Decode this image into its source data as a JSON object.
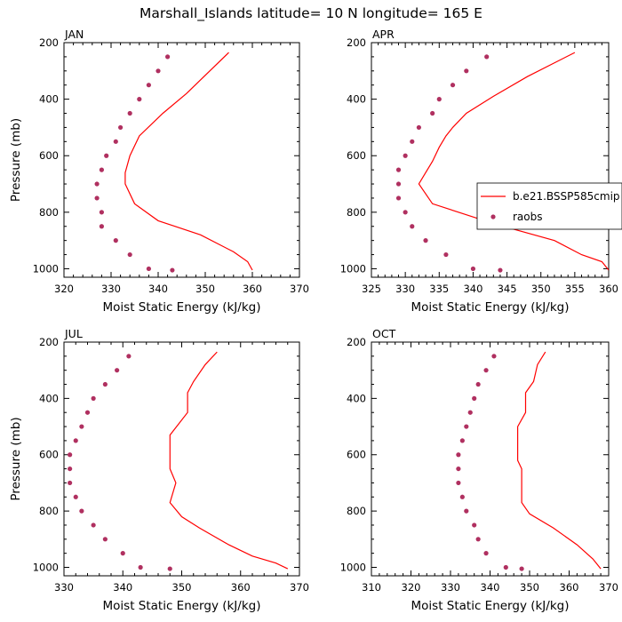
{
  "figure": {
    "title": "Marshall_Islands  latitude= 10 N longitude= 165 E"
  },
  "colors": {
    "model": "#ff0000",
    "obs": "#b03060",
    "axis": "#000000"
  },
  "chart_data": [
    {
      "type": "line",
      "panel": "JAN",
      "xlabel": "Moist Static Energy (kJ/kg)",
      "ylabel": "Pressure (mb)",
      "xlim": [
        320,
        370
      ],
      "xticks": [
        320,
        330,
        340,
        350,
        360,
        370
      ],
      "ylim": [
        200,
        1030
      ],
      "yticks": [
        200,
        400,
        600,
        800,
        1000
      ],
      "y_inverted": true,
      "series": [
        {
          "kind": "line",
          "x": [
            355,
            346,
            341,
            336,
            334,
            333,
            333,
            335,
            340,
            349,
            356,
            359,
            360
          ],
          "y": [
            235,
            380,
            450,
            530,
            600,
            660,
            700,
            770,
            830,
            880,
            940,
            975,
            1005
          ]
        },
        {
          "kind": "scatter",
          "x": [
            342,
            340,
            338,
            336,
            334,
            332,
            331,
            329,
            328,
            327,
            327,
            328,
            328,
            331,
            334,
            338,
            343
          ],
          "y": [
            250,
            300,
            350,
            400,
            450,
            500,
            550,
            600,
            650,
            700,
            750,
            800,
            850,
            900,
            950,
            1000,
            1005
          ]
        }
      ]
    },
    {
      "type": "line",
      "panel": "APR",
      "xlabel": "Moist Static Energy (kJ/kg)",
      "ylabel": "",
      "xlim": [
        325,
        360
      ],
      "xticks": [
        325,
        330,
        335,
        340,
        345,
        350,
        355,
        360
      ],
      "ylim": [
        200,
        1030
      ],
      "yticks": [
        200,
        400,
        600,
        800,
        1000
      ],
      "y_inverted": true,
      "legend": {
        "position": "center-right",
        "entries": [
          "b.e21.BSSP585cmip",
          "raobs"
        ]
      },
      "series": [
        {
          "kind": "line",
          "name": "b.e21.BSSP585cmip",
          "x": [
            355,
            348,
            343,
            339,
            337,
            336,
            335,
            334,
            333,
            332,
            334,
            343,
            352,
            356,
            359,
            360
          ],
          "y": [
            235,
            320,
            390,
            450,
            500,
            530,
            570,
            620,
            660,
            700,
            770,
            840,
            900,
            950,
            975,
            1005
          ]
        },
        {
          "kind": "scatter",
          "name": "raobs",
          "x": [
            342,
            339,
            337,
            335,
            334,
            332,
            331,
            330,
            329,
            329,
            329,
            330,
            331,
            333,
            336,
            340,
            344
          ],
          "y": [
            250,
            300,
            350,
            400,
            450,
            500,
            550,
            600,
            650,
            700,
            750,
            800,
            850,
            900,
            950,
            1000,
            1005
          ]
        }
      ]
    },
    {
      "type": "line",
      "panel": "JUL",
      "xlabel": "Moist Static Energy (kJ/kg)",
      "ylabel": "Pressure (mb)",
      "xlim": [
        330,
        370
      ],
      "xticks": [
        330,
        340,
        350,
        360,
        370
      ],
      "ylim": [
        200,
        1030
      ],
      "yticks": [
        200,
        400,
        600,
        800,
        1000
      ],
      "y_inverted": true,
      "series": [
        {
          "kind": "line",
          "x": [
            356,
            354,
            352,
            351,
            351,
            348,
            348,
            348,
            349,
            348,
            350,
            353,
            358,
            362,
            366,
            368
          ],
          "y": [
            235,
            280,
            340,
            380,
            450,
            530,
            600,
            650,
            700,
            770,
            820,
            860,
            920,
            960,
            985,
            1005
          ]
        },
        {
          "kind": "scatter",
          "x": [
            341,
            339,
            337,
            335,
            334,
            333,
            332,
            331,
            331,
            331,
            332,
            333,
            335,
            337,
            340,
            343,
            348
          ],
          "y": [
            250,
            300,
            350,
            400,
            450,
            500,
            550,
            600,
            650,
            700,
            750,
            800,
            850,
            900,
            950,
            1000,
            1005
          ]
        }
      ]
    },
    {
      "type": "line",
      "panel": "OCT",
      "xlabel": "Moist Static Energy (kJ/kg)",
      "ylabel": "",
      "xlim": [
        310,
        370
      ],
      "xticks": [
        310,
        320,
        330,
        340,
        350,
        360,
        370
      ],
      "ylim": [
        200,
        1030
      ],
      "yticks": [
        200,
        400,
        600,
        800,
        1000
      ],
      "y_inverted": true,
      "series": [
        {
          "kind": "line",
          "x": [
            354,
            352,
            351,
            349,
            349,
            347,
            347,
            347,
            348,
            348,
            348,
            350,
            356,
            362,
            366,
            368
          ],
          "y": [
            235,
            280,
            340,
            380,
            450,
            500,
            560,
            620,
            650,
            700,
            770,
            810,
            860,
            920,
            970,
            1005
          ]
        },
        {
          "kind": "scatter",
          "x": [
            341,
            339,
            337,
            336,
            335,
            334,
            333,
            332,
            332,
            332,
            333,
            334,
            336,
            337,
            339,
            344,
            348
          ],
          "y": [
            250,
            300,
            350,
            400,
            450,
            500,
            550,
            600,
            650,
            700,
            750,
            800,
            850,
            900,
            950,
            1000,
            1005
          ]
        }
      ]
    }
  ]
}
